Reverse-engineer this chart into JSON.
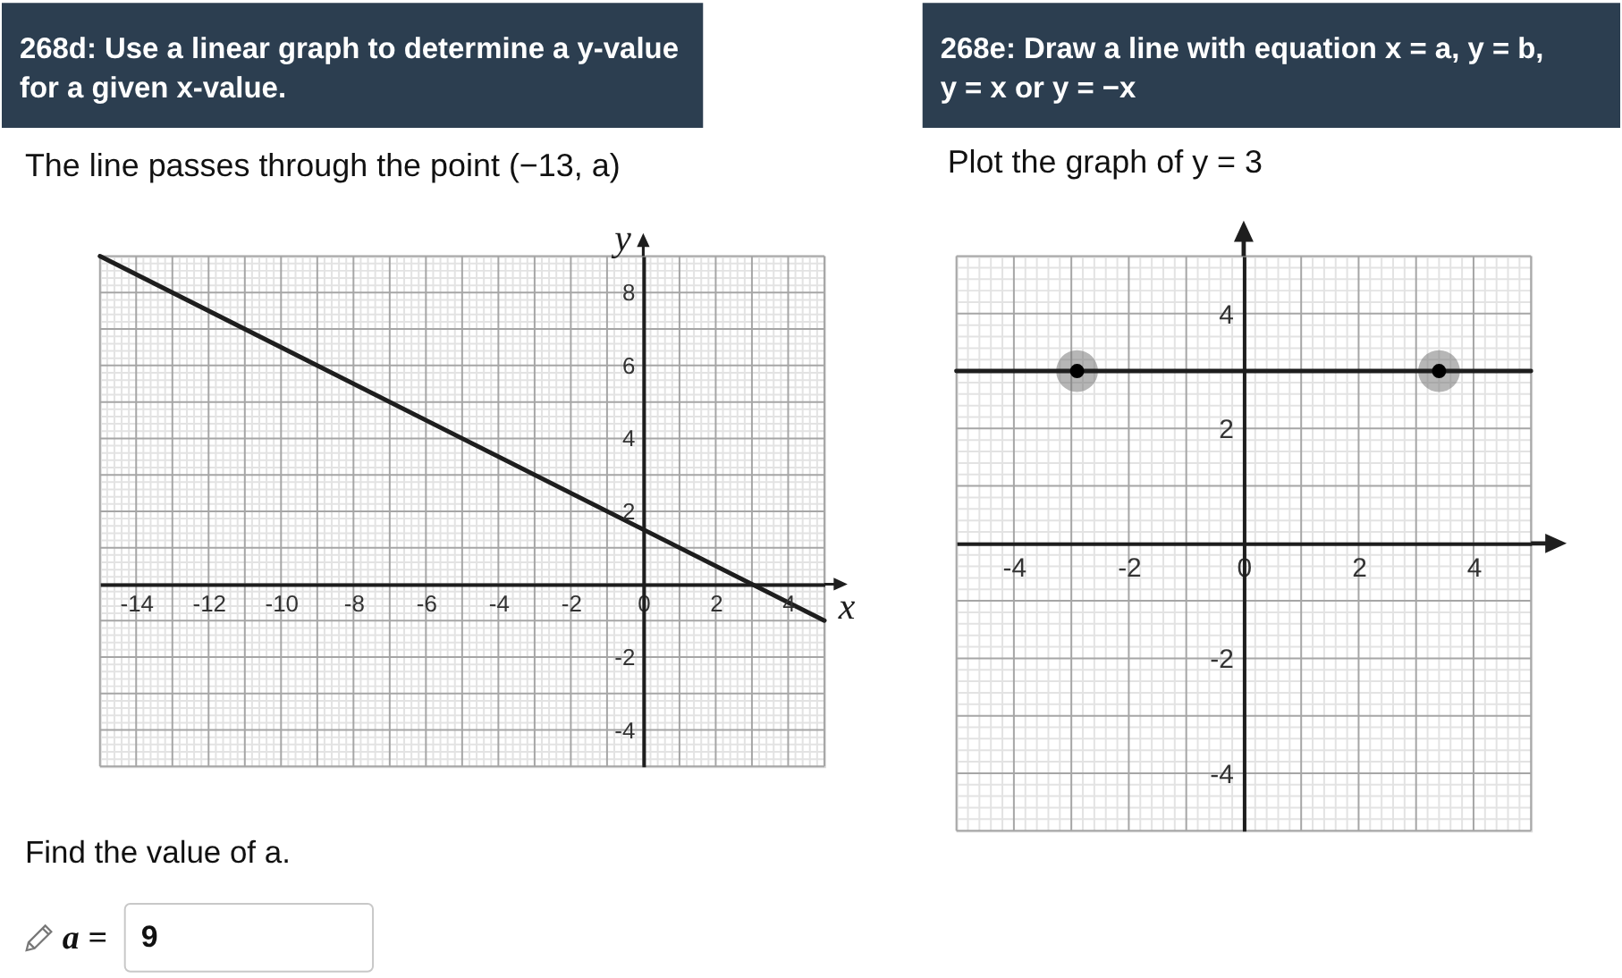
{
  "chart_data": [
    {
      "type": "line",
      "title": "268d: Use a linear graph to determine a y-value for a given x-value.",
      "subtitle": "The line passes through the point (−13, a)",
      "xlabel": "x",
      "ylabel": "y",
      "x": [
        -15,
        5
      ],
      "series": [
        {
          "color": "#1e1e1e",
          "values": [
            9,
            -1
          ]
        }
      ],
      "xlim": [
        -15,
        5
      ],
      "ylim": [
        -5,
        9
      ],
      "xticks": [
        -14,
        -12,
        -10,
        -8,
        -6,
        -4,
        -2,
        0,
        2,
        4
      ],
      "yticks": [
        -4,
        -2,
        2,
        4,
        6,
        8
      ],
      "grid": true,
      "annotations": [
        "Find the value of a.",
        "a =",
        "9"
      ]
    },
    {
      "type": "line",
      "title": "268e: Draw a line with equation x = a, y = b, y = x or y = −x",
      "subtitle": "Plot the graph of y = 3",
      "series": [
        {
          "type": "line",
          "color": "#1e1e1e",
          "x": [
            -5,
            5
          ],
          "values": [
            3,
            3
          ]
        },
        {
          "type": "scatter",
          "color": "#000000",
          "marker": "circle",
          "x": [
            -2.9,
            3.4
          ],
          "values": [
            3,
            3
          ]
        }
      ],
      "xlim": [
        -5,
        5
      ],
      "ylim": [
        -5,
        5
      ],
      "xticks": [
        -4,
        -2,
        0,
        2,
        4
      ],
      "yticks": [
        -4,
        -2,
        2,
        4
      ],
      "grid": true
    }
  ]
}
